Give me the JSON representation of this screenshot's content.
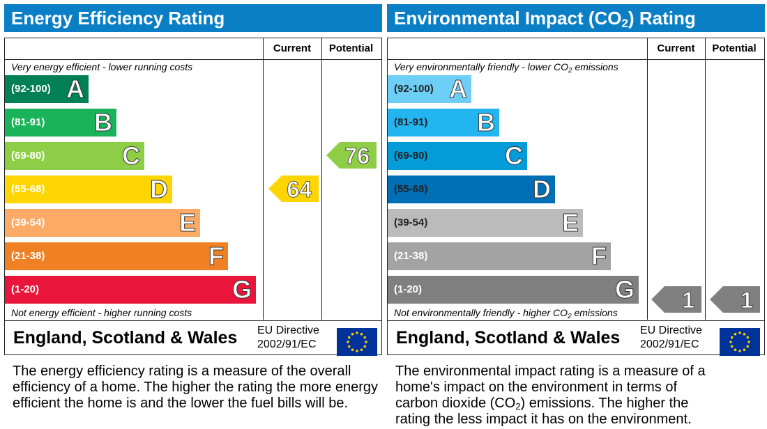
{
  "colors": {
    "header": "#0a7fc6"
  },
  "energy": {
    "title": "Energy Efficiency Rating",
    "col_current": "Current",
    "col_potential": "Potential",
    "top_caption": "Very energy efficient - lower running costs",
    "bottom_caption": "Not energy efficient - higher running costs",
    "country": "England, Scotland & Wales",
    "directive_line1": "EU Directive",
    "directive_line2": "2002/91/EC",
    "description": "The energy efficiency rating is a measure of the overall efficiency of a home. The higher the rating the more energy efficient the home is and the lower the fuel bills will be."
  },
  "environment": {
    "title_pre": "Environmental Impact (CO",
    "title_sub": "2",
    "title_post": ") Rating",
    "col_current": "Current",
    "col_potential": "Potential",
    "top_caption_pre": "Very environmentally friendly - lower CO",
    "top_caption_sub": "2",
    "top_caption_post": " emissions",
    "bottom_caption_pre": "Not environmentally friendly - higher CO",
    "bottom_caption_sub": "2",
    "bottom_caption_post": " emissions",
    "country": "England, Scotland & Wales",
    "directive_line1": "EU Directive",
    "directive_line2": "2002/91/EC",
    "description_pre": "The environmental impact rating is a measure of a home's impact on the environment in terms of carbon dioxide (CO",
    "description_sub": "2",
    "description_post": ") emissions. The higher the rating the less impact it has on the environment."
  },
  "chart_data": [
    {
      "type": "bar",
      "title": "Energy Efficiency Rating",
      "categories": [
        "A",
        "B",
        "C",
        "D",
        "E",
        "F",
        "G"
      ],
      "ranges": [
        "(92-100)",
        "(81-91)",
        "(69-80)",
        "(55-68)",
        "(39-54)",
        "(21-38)",
        "(1-20)"
      ],
      "band_colors": [
        "#008054",
        "#19b459",
        "#8dce46",
        "#ffd500",
        "#fcaa65",
        "#ef8023",
        "#e9153b"
      ],
      "range_text_dark": [
        false,
        false,
        false,
        false,
        false,
        false,
        false
      ],
      "current": {
        "value": 64,
        "band": "D"
      },
      "potential": {
        "value": 76,
        "band": "C"
      }
    },
    {
      "type": "bar",
      "title": "Environmental Impact (CO2) Rating",
      "categories": [
        "A",
        "B",
        "C",
        "D",
        "E",
        "F",
        "G"
      ],
      "ranges": [
        "(92-100)",
        "(81-91)",
        "(69-80)",
        "(55-68)",
        "(39-54)",
        "(21-38)",
        "(1-20)"
      ],
      "band_colors": [
        "#6ecff6",
        "#22b5f0",
        "#039bd8",
        "#006fb6",
        "#bbbbbb",
        "#a3a3a3",
        "#808080"
      ],
      "range_text_dark": [
        true,
        true,
        true,
        true,
        true,
        false,
        false
      ],
      "current": {
        "value": 1,
        "band": "G"
      },
      "potential": {
        "value": 1,
        "band": "G"
      }
    }
  ]
}
